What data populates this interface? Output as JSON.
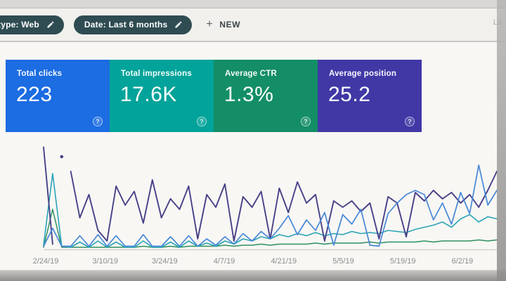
{
  "window": {
    "partial_text_top_right": "La"
  },
  "toolbar": {
    "chip_color": "#2e4c51",
    "chips": [
      {
        "label": "type: Web",
        "icon": "pencil-icon"
      },
      {
        "label": "Date: Last 6 months",
        "icon": "pencil-icon"
      }
    ],
    "new_button": {
      "plus": "+",
      "label": "NEW"
    }
  },
  "metric_cards": [
    {
      "label": "Total clicks",
      "value": "223",
      "color": "#1c6ce2",
      "help_icon": "?"
    },
    {
      "label": "Total impressions",
      "value": "17.6K",
      "color": "#02a39a",
      "help_icon": "?"
    },
    {
      "label": "Average CTR",
      "value": "1.3%",
      "color": "#138e66",
      "help_icon": "?"
    },
    {
      "label": "Average position",
      "value": "25.2",
      "color": "#4138a6",
      "help_icon": "?"
    }
  ],
  "chart_data": {
    "type": "line",
    "title": "",
    "xlabel": "",
    "ylabel": "",
    "grid": false,
    "legend": "none",
    "y_axis_visible": false,
    "y_scale": "relative 0-100, no y-axis shown on screen",
    "x_tick_labels": [
      "2/24/19",
      "3/10/19",
      "3/24/19",
      "4/7/19",
      "4/21/19",
      "5/5/19",
      "5/19/19",
      "6/2/19"
    ],
    "series": [
      {
        "name": "Average position",
        "color": "#2e8f5e",
        "width": 1.5,
        "values": [
          2,
          38,
          2,
          2,
          2,
          2,
          2,
          2,
          2,
          2,
          2,
          3,
          2,
          2,
          3,
          2,
          3,
          3,
          3,
          3,
          4,
          3,
          4,
          4,
          5,
          4,
          5,
          5,
          5,
          5,
          6,
          5,
          6,
          6,
          6,
          6,
          7,
          6,
          7,
          7,
          7,
          7,
          8,
          7,
          8,
          8,
          8,
          8,
          9,
          8,
          9
        ]
      },
      {
        "name": "Average CTR",
        "color": "#2ba3b7",
        "width": 1.6,
        "values": [
          4,
          72,
          3,
          2,
          7,
          2,
          8,
          2,
          7,
          2,
          2,
          8,
          2,
          2,
          7,
          2,
          8,
          3,
          6,
          3,
          8,
          5,
          10,
          8,
          12,
          10,
          14,
          12,
          15,
          13,
          16,
          13,
          15,
          14,
          17,
          15,
          16,
          15,
          18,
          17,
          16,
          19,
          21,
          23,
          26,
          21,
          29,
          33,
          26,
          31,
          29
        ]
      },
      {
        "name": "Total impressions",
        "color": "#474087",
        "width": 1.9,
        "values": [
          97,
          5,
          null,
          74,
          30,
          52,
          18,
          8,
          60,
          42,
          55,
          25,
          66,
          30,
          48,
          38,
          60,
          10,
          52,
          40,
          62,
          8,
          50,
          40,
          55,
          10,
          58,
          35,
          64,
          44,
          52,
          8,
          46,
          40,
          46,
          36,
          44,
          10,
          50,
          44,
          12,
          54,
          46,
          56,
          48,
          54,
          44,
          52,
          40,
          56,
          74
        ]
      },
      {
        "name": "Total clicks",
        "color": "#4687d7",
        "width": 1.7,
        "values": [
          3,
          20,
          3,
          3,
          13,
          3,
          14,
          3,
          13,
          3,
          3,
          14,
          3,
          3,
          12,
          3,
          13,
          3,
          10,
          4,
          12,
          5,
          15,
          8,
          17,
          10,
          20,
          32,
          14,
          28,
          18,
          35,
          4,
          33,
          24,
          38,
          4,
          3,
          34,
          44,
          52,
          56,
          52,
          28,
          44,
          24,
          54,
          34,
          80,
          42,
          56
        ]
      }
    ],
    "isolated_point": {
      "series": "Total impressions",
      "x_index": 2,
      "value": 88
    }
  }
}
